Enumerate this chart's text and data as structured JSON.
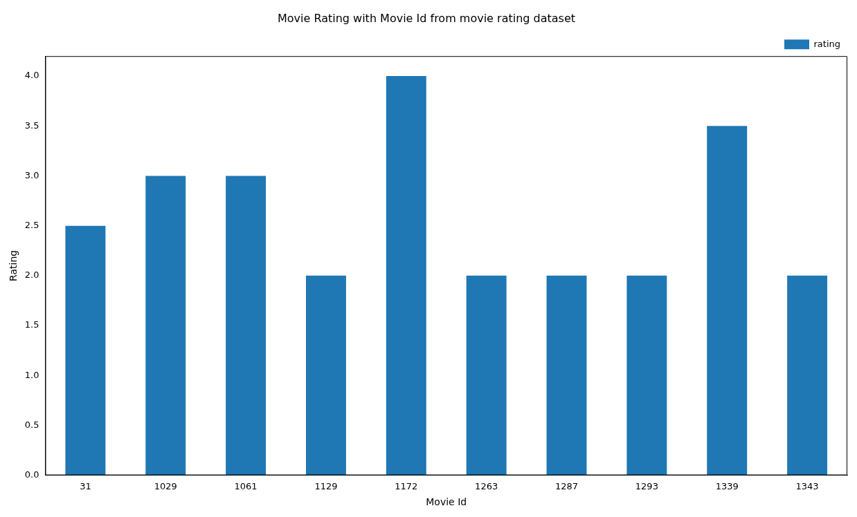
{
  "chart_data": {
    "type": "bar",
    "title": "Movie Rating with Movie Id from movie rating dataset",
    "xlabel": "Movie Id",
    "ylabel": "Rating",
    "categories": [
      "31",
      "1029",
      "1061",
      "1129",
      "1172",
      "1263",
      "1287",
      "1293",
      "1339",
      "1343"
    ],
    "series": [
      {
        "name": "rating",
        "color": "#1f77b4",
        "values": [
          2.5,
          3,
          3,
          2,
          4,
          2,
          2,
          2,
          3.5,
          2
        ]
      }
    ],
    "ylim": [
      0,
      4.2
    ],
    "yticks": [
      {
        "value": 0,
        "label": "0.0"
      },
      {
        "value": 0.5,
        "label": "0.5"
      },
      {
        "value": 1,
        "label": "1.0"
      },
      {
        "value": 1.5,
        "label": "1.5"
      },
      {
        "value": 2,
        "label": "2.0"
      },
      {
        "value": 2.5,
        "label": "2.5"
      },
      {
        "value": 3,
        "label": "3.0"
      },
      {
        "value": 3.5,
        "label": "3.5"
      },
      {
        "value": 4,
        "label": "4.0"
      }
    ],
    "grid": false,
    "legend": "top right"
  }
}
